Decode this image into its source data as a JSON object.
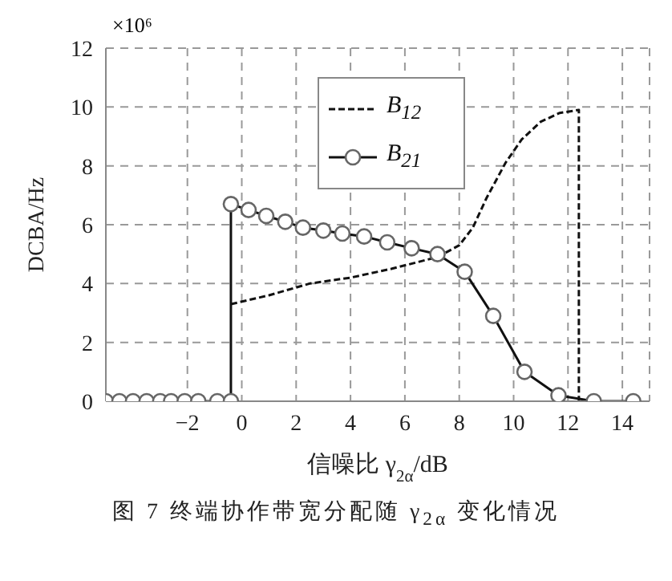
{
  "chart_data": {
    "type": "line",
    "xlabel": "信噪比 γ$_{2α}$/dB",
    "ylabel": "DCBA/Hz",
    "annotations": [
      "×10⁶",
      "图 7  终端协作带宽分配随 γ$_{2α}$ 变化情况"
    ],
    "xlim": [
      -5,
      15
    ],
    "xticks": [
      -2,
      0,
      2,
      4,
      6,
      8,
      10,
      12,
      14
    ],
    "ylim": [
      0,
      12
    ],
    "yticks": [
      0,
      2,
      4,
      6,
      8,
      10,
      12
    ],
    "grid": true,
    "legend": "top",
    "series": [
      {
        "name": "B$_{12}$",
        "color": "#111111",
        "line_style": "dashed",
        "marker": "none",
        "x": [
          -0.4,
          1,
          2.5,
          4,
          5.5,
          7.2,
          8,
          8.5,
          9,
          9.7,
          10.3,
          11,
          11.7,
          12.4,
          12.4
        ],
        "values": [
          3.3,
          3.6,
          4.0,
          4.2,
          4.5,
          4.9,
          5.3,
          5.9,
          6.9,
          8.1,
          8.9,
          9.5,
          9.8,
          9.9,
          0
        ]
      },
      {
        "name": "B$_{21}$",
        "color": "#111111",
        "line_style": "solid",
        "marker": "circle",
        "x": [
          -5,
          -4.5,
          -4,
          -3.5,
          -3,
          -2.6,
          -2.1,
          -1.6,
          -0.9,
          -0.4,
          -0.4,
          0.25,
          0.9,
          1.6,
          2.25,
          3.0,
          3.7,
          4.5,
          5.35,
          6.25,
          7.2,
          8.2,
          9.25,
          10.4,
          11.65,
          12.95,
          14.4
        ],
        "values": [
          0,
          0,
          0,
          0,
          0,
          0,
          0,
          0,
          0,
          0,
          6.7,
          6.5,
          6.3,
          6.1,
          5.9,
          5.8,
          5.7,
          5.6,
          5.4,
          5.2,
          5.0,
          4.4,
          2.9,
          1.0,
          0.2,
          0,
          0
        ]
      }
    ]
  }
}
